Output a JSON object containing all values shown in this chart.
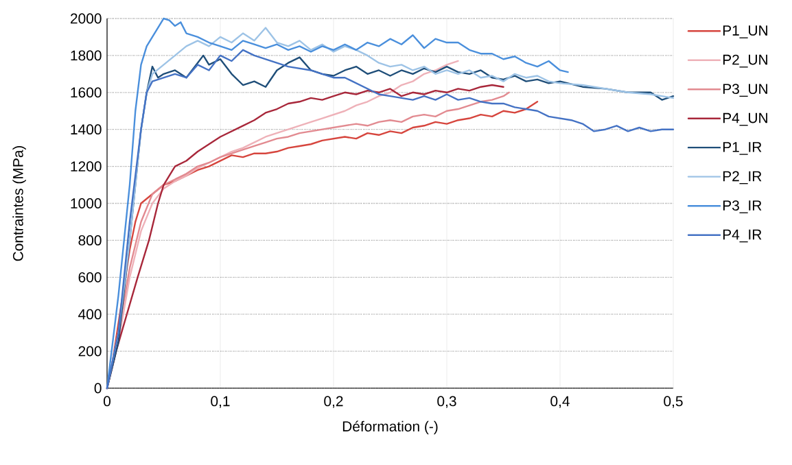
{
  "chart_data": {
    "type": "line",
    "xlabel": "Déformation (-)",
    "ylabel": "Contraintes (MPa)",
    "xlim": [
      0,
      0.5
    ],
    "ylim": [
      0,
      2000
    ],
    "xticks": [
      0,
      {
        "value": 0.1,
        "label": "0,1"
      },
      {
        "value": 0.2,
        "label": "0,2"
      },
      {
        "value": 0.3,
        "label": "0,3"
      },
      {
        "value": 0.4,
        "label": "0,4"
      },
      {
        "value": 0.5,
        "label": "0,5"
      }
    ],
    "yticks": [
      0,
      200,
      400,
      600,
      800,
      1000,
      1200,
      1400,
      1600,
      1800,
      2000
    ],
    "grid": true,
    "legend": "right",
    "marker": "none",
    "line_style": "solid",
    "series": [
      {
        "name": "P1_UN",
        "color": "#d6453d",
        "x": [
          0,
          0.005,
          0.01,
          0.015,
          0.02,
          0.025,
          0.03,
          0.04,
          0.05,
          0.06,
          0.07,
          0.08,
          0.09,
          0.1,
          0.11,
          0.12,
          0.13,
          0.14,
          0.15,
          0.16,
          0.17,
          0.18,
          0.19,
          0.2,
          0.21,
          0.22,
          0.23,
          0.24,
          0.25,
          0.26,
          0.27,
          0.28,
          0.29,
          0.3,
          0.31,
          0.32,
          0.33,
          0.34,
          0.35,
          0.36,
          0.37,
          0.38
        ],
        "values": [
          0,
          150,
          350,
          550,
          750,
          900,
          1000,
          1050,
          1100,
          1120,
          1150,
          1180,
          1200,
          1230,
          1260,
          1250,
          1270,
          1270,
          1280,
          1300,
          1310,
          1320,
          1340,
          1350,
          1360,
          1350,
          1380,
          1370,
          1390,
          1380,
          1410,
          1420,
          1440,
          1430,
          1450,
          1460,
          1480,
          1470,
          1500,
          1490,
          1510,
          1550
        ]
      },
      {
        "name": "P2_UN",
        "color": "#eeb1b8",
        "x": [
          0,
          0.01,
          0.02,
          0.03,
          0.04,
          0.05,
          0.06,
          0.07,
          0.08,
          0.09,
          0.1,
          0.11,
          0.12,
          0.13,
          0.14,
          0.15,
          0.16,
          0.17,
          0.18,
          0.19,
          0.2,
          0.21,
          0.22,
          0.23,
          0.24,
          0.25,
          0.26,
          0.27,
          0.28,
          0.29,
          0.3,
          0.31
        ],
        "values": [
          0,
          250,
          600,
          850,
          1000,
          1080,
          1120,
          1150,
          1190,
          1220,
          1250,
          1280,
          1300,
          1330,
          1360,
          1380,
          1400,
          1420,
          1440,
          1460,
          1480,
          1500,
          1530,
          1550,
          1580,
          1600,
          1640,
          1660,
          1700,
          1720,
          1750,
          1770
        ]
      },
      {
        "name": "P3_UN",
        "color": "#e28a90",
        "x": [
          0,
          0.01,
          0.02,
          0.03,
          0.04,
          0.05,
          0.06,
          0.07,
          0.08,
          0.09,
          0.1,
          0.11,
          0.12,
          0.13,
          0.14,
          0.15,
          0.16,
          0.17,
          0.18,
          0.19,
          0.2,
          0.21,
          0.22,
          0.23,
          0.24,
          0.25,
          0.26,
          0.27,
          0.28,
          0.29,
          0.3,
          0.31,
          0.32,
          0.33,
          0.34,
          0.35,
          0.355
        ],
        "values": [
          0,
          300,
          650,
          900,
          1050,
          1100,
          1130,
          1160,
          1200,
          1220,
          1250,
          1270,
          1290,
          1310,
          1330,
          1350,
          1360,
          1380,
          1390,
          1400,
          1410,
          1420,
          1430,
          1420,
          1440,
          1450,
          1440,
          1470,
          1480,
          1470,
          1500,
          1510,
          1530,
          1550,
          1560,
          1580,
          1600
        ]
      },
      {
        "name": "P4_UN",
        "color": "#a8273a",
        "x": [
          0,
          0.008,
          0.017,
          0.027,
          0.037,
          0.045,
          0.05,
          0.06,
          0.07,
          0.08,
          0.09,
          0.1,
          0.11,
          0.12,
          0.13,
          0.14,
          0.15,
          0.16,
          0.17,
          0.18,
          0.19,
          0.2,
          0.21,
          0.22,
          0.23,
          0.24,
          0.25,
          0.26,
          0.27,
          0.28,
          0.29,
          0.3,
          0.31,
          0.32,
          0.33,
          0.34,
          0.35
        ],
        "values": [
          0,
          200,
          390,
          600,
          800,
          1000,
          1100,
          1200,
          1230,
          1280,
          1320,
          1360,
          1390,
          1420,
          1450,
          1490,
          1510,
          1540,
          1550,
          1570,
          1560,
          1580,
          1600,
          1590,
          1610,
          1600,
          1620,
          1580,
          1600,
          1590,
          1610,
          1600,
          1620,
          1610,
          1630,
          1640,
          1630
        ]
      },
      {
        "name": "P1_IR",
        "color": "#1f4e79",
        "x": [
          0,
          0.01,
          0.02,
          0.03,
          0.035,
          0.04,
          0.045,
          0.05,
          0.06,
          0.07,
          0.08,
          0.085,
          0.09,
          0.1,
          0.11,
          0.12,
          0.13,
          0.14,
          0.15,
          0.16,
          0.17,
          0.18,
          0.19,
          0.2,
          0.21,
          0.22,
          0.23,
          0.24,
          0.25,
          0.26,
          0.27,
          0.28,
          0.29,
          0.3,
          0.31,
          0.32,
          0.33,
          0.34,
          0.35,
          0.36,
          0.37,
          0.38,
          0.39,
          0.4,
          0.42,
          0.44,
          0.46,
          0.48,
          0.49,
          0.5
        ],
        "values": [
          0,
          250,
          800,
          1400,
          1600,
          1740,
          1680,
          1700,
          1720,
          1680,
          1760,
          1800,
          1750,
          1780,
          1700,
          1640,
          1660,
          1630,
          1720,
          1760,
          1790,
          1720,
          1700,
          1690,
          1720,
          1740,
          1700,
          1720,
          1690,
          1720,
          1700,
          1730,
          1710,
          1740,
          1710,
          1700,
          1720,
          1680,
          1670,
          1690,
          1660,
          1670,
          1650,
          1660,
          1630,
          1620,
          1600,
          1600,
          1560,
          1580
        ]
      },
      {
        "name": "P2_IR",
        "color": "#9dc3e6",
        "x": [
          0,
          0.01,
          0.02,
          0.03,
          0.035,
          0.04,
          0.05,
          0.06,
          0.07,
          0.08,
          0.09,
          0.1,
          0.11,
          0.12,
          0.13,
          0.14,
          0.15,
          0.16,
          0.17,
          0.18,
          0.19,
          0.2,
          0.21,
          0.22,
          0.23,
          0.24,
          0.25,
          0.26,
          0.27,
          0.28,
          0.29,
          0.3,
          0.31,
          0.32,
          0.33,
          0.34,
          0.35,
          0.36,
          0.37,
          0.38,
          0.39,
          0.4,
          0.42,
          0.44,
          0.46,
          0.48,
          0.5
        ],
        "values": [
          0,
          300,
          800,
          1400,
          1600,
          1700,
          1750,
          1800,
          1850,
          1880,
          1850,
          1900,
          1870,
          1920,
          1880,
          1950,
          1870,
          1850,
          1880,
          1830,
          1860,
          1820,
          1850,
          1830,
          1800,
          1760,
          1740,
          1750,
          1720,
          1740,
          1700,
          1720,
          1700,
          1720,
          1680,
          1690,
          1660,
          1700,
          1680,
          1690,
          1660,
          1650,
          1640,
          1620,
          1600,
          1590,
          1570
        ]
      },
      {
        "name": "P3_IR",
        "color": "#4a8fdc",
        "x": [
          0,
          0.01,
          0.02,
          0.025,
          0.03,
          0.035,
          0.04,
          0.045,
          0.05,
          0.055,
          0.06,
          0.065,
          0.07,
          0.08,
          0.09,
          0.1,
          0.11,
          0.12,
          0.13,
          0.14,
          0.15,
          0.16,
          0.17,
          0.18,
          0.19,
          0.2,
          0.21,
          0.22,
          0.23,
          0.24,
          0.25,
          0.26,
          0.27,
          0.28,
          0.29,
          0.3,
          0.31,
          0.32,
          0.33,
          0.34,
          0.35,
          0.36,
          0.37,
          0.38,
          0.39,
          0.4,
          0.407
        ],
        "values": [
          0,
          500,
          1100,
          1500,
          1750,
          1850,
          1900,
          1950,
          2000,
          1990,
          1960,
          1980,
          1920,
          1900,
          1870,
          1850,
          1830,
          1880,
          1860,
          1840,
          1860,
          1830,
          1850,
          1820,
          1850,
          1830,
          1860,
          1830,
          1870,
          1850,
          1890,
          1860,
          1910,
          1840,
          1890,
          1870,
          1870,
          1830,
          1810,
          1810,
          1780,
          1795,
          1760,
          1740,
          1770,
          1720,
          1710
        ]
      },
      {
        "name": "P4_IR",
        "color": "#4472c4",
        "x": [
          0,
          0.01,
          0.02,
          0.03,
          0.035,
          0.04,
          0.05,
          0.06,
          0.07,
          0.08,
          0.09,
          0.1,
          0.11,
          0.12,
          0.13,
          0.14,
          0.15,
          0.16,
          0.17,
          0.18,
          0.19,
          0.2,
          0.21,
          0.22,
          0.23,
          0.24,
          0.25,
          0.26,
          0.27,
          0.28,
          0.29,
          0.3,
          0.31,
          0.32,
          0.33,
          0.34,
          0.35,
          0.36,
          0.37,
          0.38,
          0.39,
          0.4,
          0.41,
          0.42,
          0.43,
          0.44,
          0.45,
          0.46,
          0.47,
          0.48,
          0.49,
          0.5
        ],
        "values": [
          0,
          300,
          900,
          1400,
          1600,
          1660,
          1680,
          1700,
          1680,
          1750,
          1720,
          1800,
          1770,
          1830,
          1800,
          1780,
          1760,
          1740,
          1730,
          1720,
          1700,
          1680,
          1680,
          1650,
          1620,
          1590,
          1580,
          1570,
          1560,
          1580,
          1560,
          1590,
          1560,
          1570,
          1550,
          1540,
          1540,
          1520,
          1510,
          1500,
          1470,
          1460,
          1450,
          1430,
          1390,
          1400,
          1420,
          1390,
          1410,
          1390,
          1400,
          1400
        ]
      }
    ]
  }
}
